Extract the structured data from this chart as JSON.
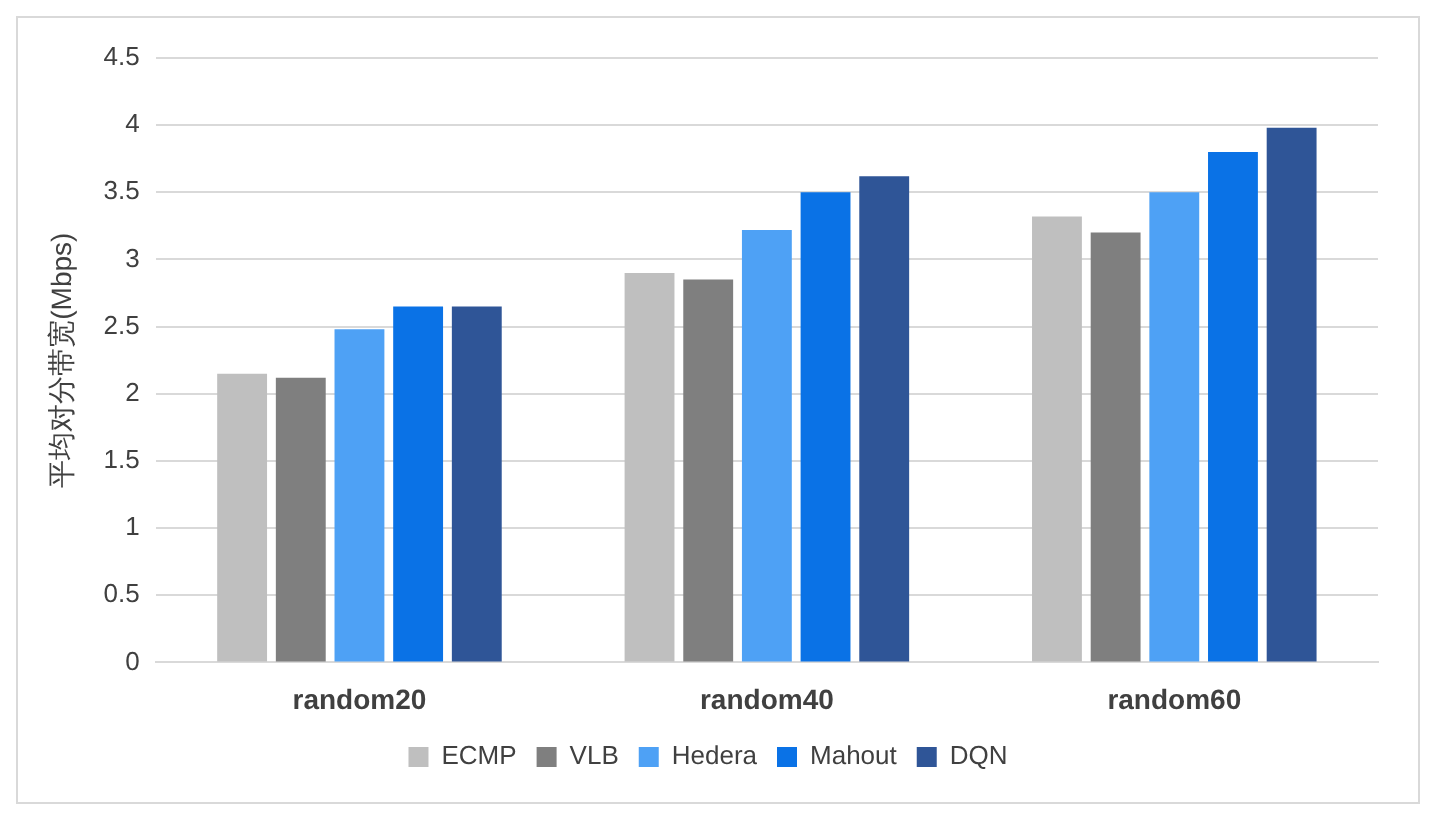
{
  "chart_data": {
    "type": "bar",
    "ylabel": "平均对分带宽(Mbps)",
    "categories": [
      "random20",
      "random40",
      "random60"
    ],
    "series": [
      {
        "name": "ECMP",
        "color": "#bfbfbf",
        "values": [
          2.15,
          2.9,
          3.32
        ]
      },
      {
        "name": "VLB",
        "color": "#7f7f7f",
        "values": [
          2.12,
          2.85,
          3.2
        ]
      },
      {
        "name": "Hedera",
        "color": "#4ea1f5",
        "values": [
          2.48,
          3.22,
          3.5
        ]
      },
      {
        "name": "Mahout",
        "color": "#0a72e6",
        "values": [
          2.65,
          3.5,
          3.8
        ]
      },
      {
        "name": "DQN",
        "color": "#2f5597",
        "values": [
          2.65,
          3.62,
          3.98
        ]
      }
    ],
    "ylim": [
      0,
      4.5
    ],
    "yticks": [
      0,
      0.5,
      1,
      1.5,
      2,
      2.5,
      3,
      3.5,
      4,
      4.5
    ],
    "grid": "y",
    "legend": "bottom"
  }
}
